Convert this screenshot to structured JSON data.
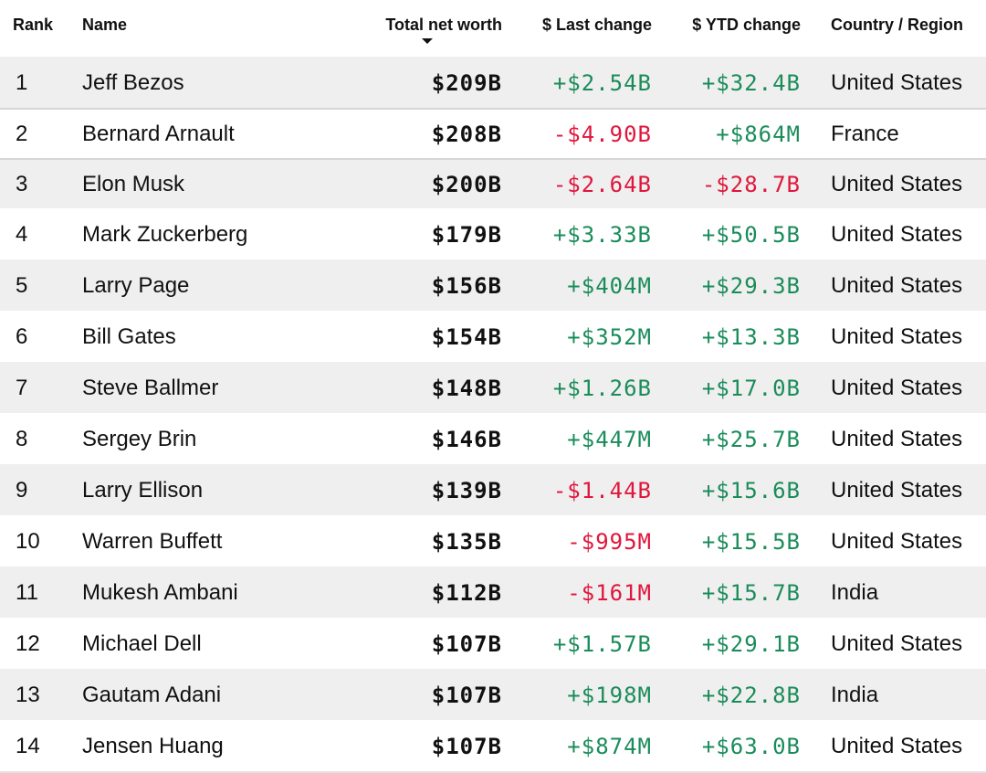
{
  "header": {
    "rank": "Rank",
    "name": "Name",
    "total_net_worth": "Total net worth",
    "last_change": "$ Last change",
    "ytd_change": "$ YTD change",
    "country": "Country / Region"
  },
  "colors": {
    "positive": "#1a8c5a",
    "negative": "#e0163c",
    "row_shade": "#efefef"
  },
  "rows": [
    {
      "rank": "1",
      "name": "Jeff Bezos",
      "net": "$209B",
      "last": "+$2.54B",
      "ytd": "+$32.4B",
      "country": "United States"
    },
    {
      "rank": "2",
      "name": "Bernard Arnault",
      "net": "$208B",
      "last": "-$4.90B",
      "ytd": "+$864M",
      "country": "France"
    },
    {
      "rank": "3",
      "name": "Elon Musk",
      "net": "$200B",
      "last": "-$2.64B",
      "ytd": "-$28.7B",
      "country": "United States"
    },
    {
      "rank": "4",
      "name": "Mark Zuckerberg",
      "net": "$179B",
      "last": "+$3.33B",
      "ytd": "+$50.5B",
      "country": "United States"
    },
    {
      "rank": "5",
      "name": "Larry Page",
      "net": "$156B",
      "last": "+$404M",
      "ytd": "+$29.3B",
      "country": "United States"
    },
    {
      "rank": "6",
      "name": "Bill Gates",
      "net": "$154B",
      "last": "+$352M",
      "ytd": "+$13.3B",
      "country": "United States"
    },
    {
      "rank": "7",
      "name": "Steve Ballmer",
      "net": "$148B",
      "last": "+$1.26B",
      "ytd": "+$17.0B",
      "country": "United States"
    },
    {
      "rank": "8",
      "name": "Sergey Brin",
      "net": "$146B",
      "last": "+$447M",
      "ytd": "+$25.7B",
      "country": "United States"
    },
    {
      "rank": "9",
      "name": "Larry Ellison",
      "net": "$139B",
      "last": "-$1.44B",
      "ytd": "+$15.6B",
      "country": "United States"
    },
    {
      "rank": "10",
      "name": "Warren Buffett",
      "net": "$135B",
      "last": "-$995M",
      "ytd": "+$15.5B",
      "country": "United States"
    },
    {
      "rank": "11",
      "name": "Mukesh Ambani",
      "net": "$112B",
      "last": "-$161M",
      "ytd": "+$15.7B",
      "country": "India"
    },
    {
      "rank": "12",
      "name": "Michael Dell",
      "net": "$107B",
      "last": "+$1.57B",
      "ytd": "+$29.1B",
      "country": "United States"
    },
    {
      "rank": "13",
      "name": "Gautam Adani",
      "net": "$107B",
      "last": "+$198M",
      "ytd": "+$22.8B",
      "country": "India"
    },
    {
      "rank": "14",
      "name": "Jensen Huang",
      "net": "$107B",
      "last": "+$874M",
      "ytd": "+$63.0B",
      "country": "United States"
    }
  ]
}
